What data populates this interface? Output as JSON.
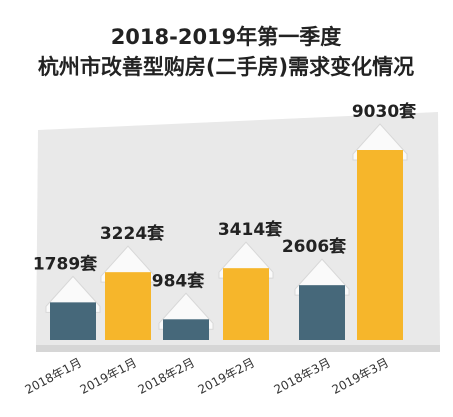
{
  "chart_data": {
    "type": "bar",
    "title": "2018-2019年第一季度",
    "subtitle": "杭州市改善型购房(二手房)需求变化情况",
    "categories": [
      "2018年1月",
      "2019年1月",
      "2018年2月",
      "2019年2月",
      "2018年3月",
      "2019年3月"
    ],
    "values": [
      1789,
      3224,
      984,
      3414,
      2606,
      9030
    ],
    "value_labels": [
      "1789套",
      "3224套",
      "984套",
      "3414套",
      "2606套",
      "9030套"
    ],
    "colors": [
      "#46687a",
      "#f6b62b",
      "#46687a",
      "#f6b62b",
      "#46687a",
      "#f6b62b"
    ]
  }
}
